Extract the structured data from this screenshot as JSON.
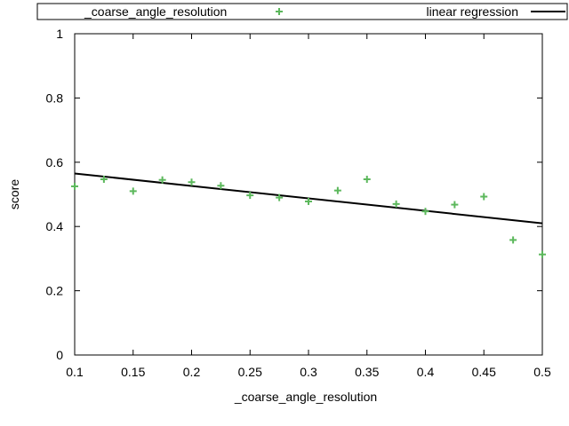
{
  "chart_data": {
    "type": "scatter",
    "xlabel": "_coarse_angle_resolution",
    "ylabel": "score",
    "xlim": [
      0.1,
      0.5
    ],
    "ylim": [
      0,
      1
    ],
    "x_ticks": [
      "0.1",
      "0.15",
      "0.2",
      "0.25",
      "0.3",
      "0.35",
      "0.4",
      "0.45",
      "0.5"
    ],
    "y_ticks": [
      "0",
      "0.2",
      "0.4",
      "0.6",
      "0.8",
      "1"
    ],
    "grid": false,
    "legend_placement": "top",
    "series": [
      {
        "name": "_coarse_angle_resolution",
        "marker": "plus",
        "color": "#5cb85c",
        "points": [
          {
            "x": 0.1,
            "y": 0.525
          },
          {
            "x": 0.125,
            "y": 0.547
          },
          {
            "x": 0.15,
            "y": 0.51
          },
          {
            "x": 0.175,
            "y": 0.545
          },
          {
            "x": 0.2,
            "y": 0.538
          },
          {
            "x": 0.225,
            "y": 0.527
          },
          {
            "x": 0.25,
            "y": 0.497
          },
          {
            "x": 0.275,
            "y": 0.49
          },
          {
            "x": 0.3,
            "y": 0.478
          },
          {
            "x": 0.325,
            "y": 0.512
          },
          {
            "x": 0.35,
            "y": 0.547
          },
          {
            "x": 0.375,
            "y": 0.47
          },
          {
            "x": 0.4,
            "y": 0.447
          },
          {
            "x": 0.425,
            "y": 0.468
          },
          {
            "x": 0.45,
            "y": 0.493
          },
          {
            "x": 0.475,
            "y": 0.358
          },
          {
            "x": 0.5,
            "y": 0.313
          }
        ]
      },
      {
        "name": "linear regression",
        "marker": "line",
        "color": "#000000",
        "points": [
          {
            "x": 0.1,
            "y": 0.565
          },
          {
            "x": 0.5,
            "y": 0.41
          }
        ]
      }
    ]
  }
}
